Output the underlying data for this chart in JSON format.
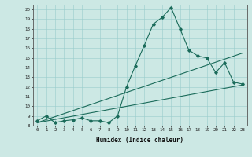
{
  "xlabel": "Humidex (Indice chaleur)",
  "bg_color": "#cce8e4",
  "line_color": "#1a6b5a",
  "grid_color": "#99cccc",
  "x_data": [
    0,
    1,
    2,
    3,
    4,
    5,
    6,
    7,
    8,
    9,
    10,
    11,
    12,
    13,
    14,
    15,
    16,
    17,
    18,
    19,
    20,
    21,
    22,
    23
  ],
  "series1": [
    8.5,
    9.0,
    8.3,
    8.5,
    8.6,
    8.8,
    8.5,
    8.5,
    8.3,
    9.0,
    12.0,
    14.2,
    16.3,
    18.5,
    19.2,
    20.2,
    18.0,
    15.8,
    15.2,
    15.0,
    13.5,
    14.5,
    12.5,
    12.3
  ],
  "series2_x": [
    0,
    23
  ],
  "series2_y": [
    8.3,
    15.5
  ],
  "series3_x": [
    0,
    23
  ],
  "series3_y": [
    8.3,
    12.2
  ],
  "ylim": [
    8,
    20.5
  ],
  "xlim": [
    -0.5,
    23.5
  ],
  "yticks": [
    8,
    9,
    10,
    11,
    12,
    13,
    14,
    15,
    16,
    17,
    18,
    19,
    20
  ],
  "xticks": [
    0,
    1,
    2,
    3,
    4,
    5,
    6,
    7,
    8,
    9,
    10,
    11,
    12,
    13,
    14,
    15,
    16,
    17,
    18,
    19,
    20,
    21,
    22,
    23
  ]
}
